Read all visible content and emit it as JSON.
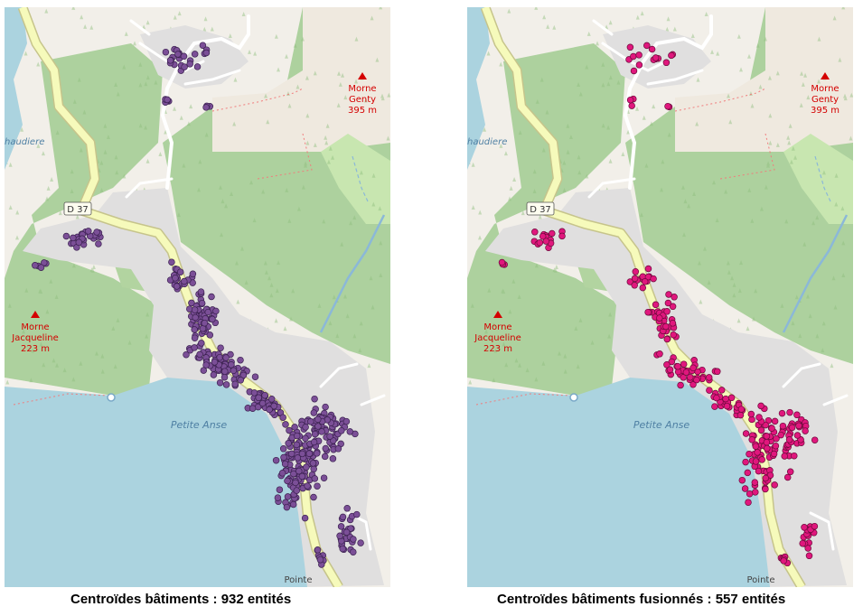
{
  "map_labels": {
    "peak_north_line1": "Morne",
    "peak_north_line2": "Genty",
    "peak_north_line3": "395 m",
    "peak_west_line1": "Morne",
    "peak_west_line2": "Jacqueline",
    "peak_west_line3": "223 m",
    "water_bay": "Petite Anse",
    "place_bottom": "Pointe",
    "place_west": "haudiere",
    "road_shield": "D 37"
  },
  "panels": [
    {
      "id": "left",
      "caption": "Centroïdes bâtiments : 932 entités",
      "point_count": 932,
      "point_color": "#7b4f97",
      "point_stroke": "#3b2150"
    },
    {
      "id": "right",
      "caption": "Centroïdes bâtiments fusionnés : 557 entités",
      "point_count": 557,
      "point_color": "#e0177d",
      "point_stroke": "#6b0a3a"
    }
  ],
  "colors": {
    "sea": "#abd3df",
    "forest": "#add19e",
    "grass": "#c8e6b0",
    "residential": "#e0dfdf",
    "land": "#f2efe9",
    "main_road": "#f6fabb",
    "road_casing": "#c6c48b",
    "peak": "#d40000"
  }
}
